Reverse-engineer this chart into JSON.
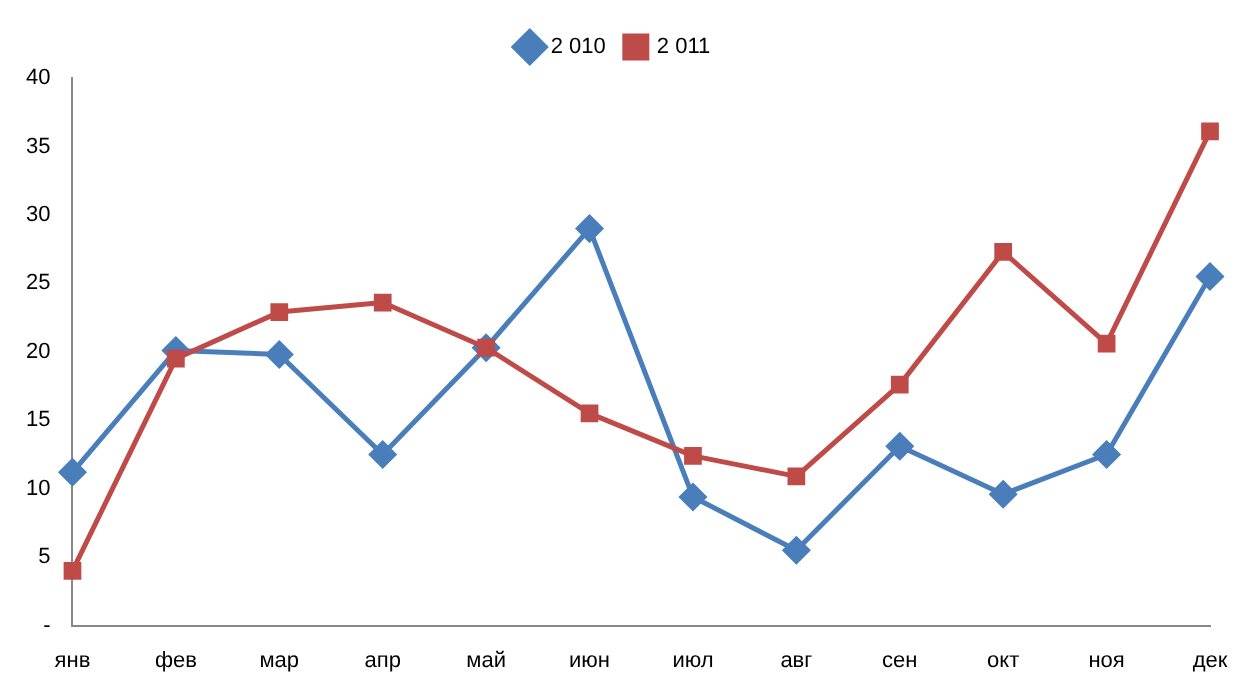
{
  "chart_data": {
    "type": "line",
    "categories": [
      "янв",
      "фев",
      "мар",
      "апр",
      "май",
      "июн",
      "июл",
      "авг",
      "сен",
      "окт",
      "ноя",
      "дек"
    ],
    "series": [
      {
        "name": "2 010",
        "color": "#4a7ebb",
        "marker": "diamond",
        "values": [
          11.2,
          20.1,
          19.8,
          12.5,
          20.3,
          29.0,
          9.4,
          5.5,
          13.1,
          9.6,
          12.5,
          25.5
        ]
      },
      {
        "name": "2 011",
        "color": "#be4b48",
        "marker": "square",
        "values": [
          4.0,
          19.5,
          22.9,
          23.6,
          20.3,
          15.5,
          12.4,
          10.9,
          17.6,
          27.3,
          20.6,
          36.1
        ]
      }
    ],
    "ylim": [
      0,
      40
    ],
    "yticks": [
      {
        "value": 0,
        "label": "-"
      },
      5,
      10,
      15,
      20,
      25,
      30,
      35,
      40
    ],
    "grid": false,
    "legend": "top",
    "line_style": "solid"
  }
}
